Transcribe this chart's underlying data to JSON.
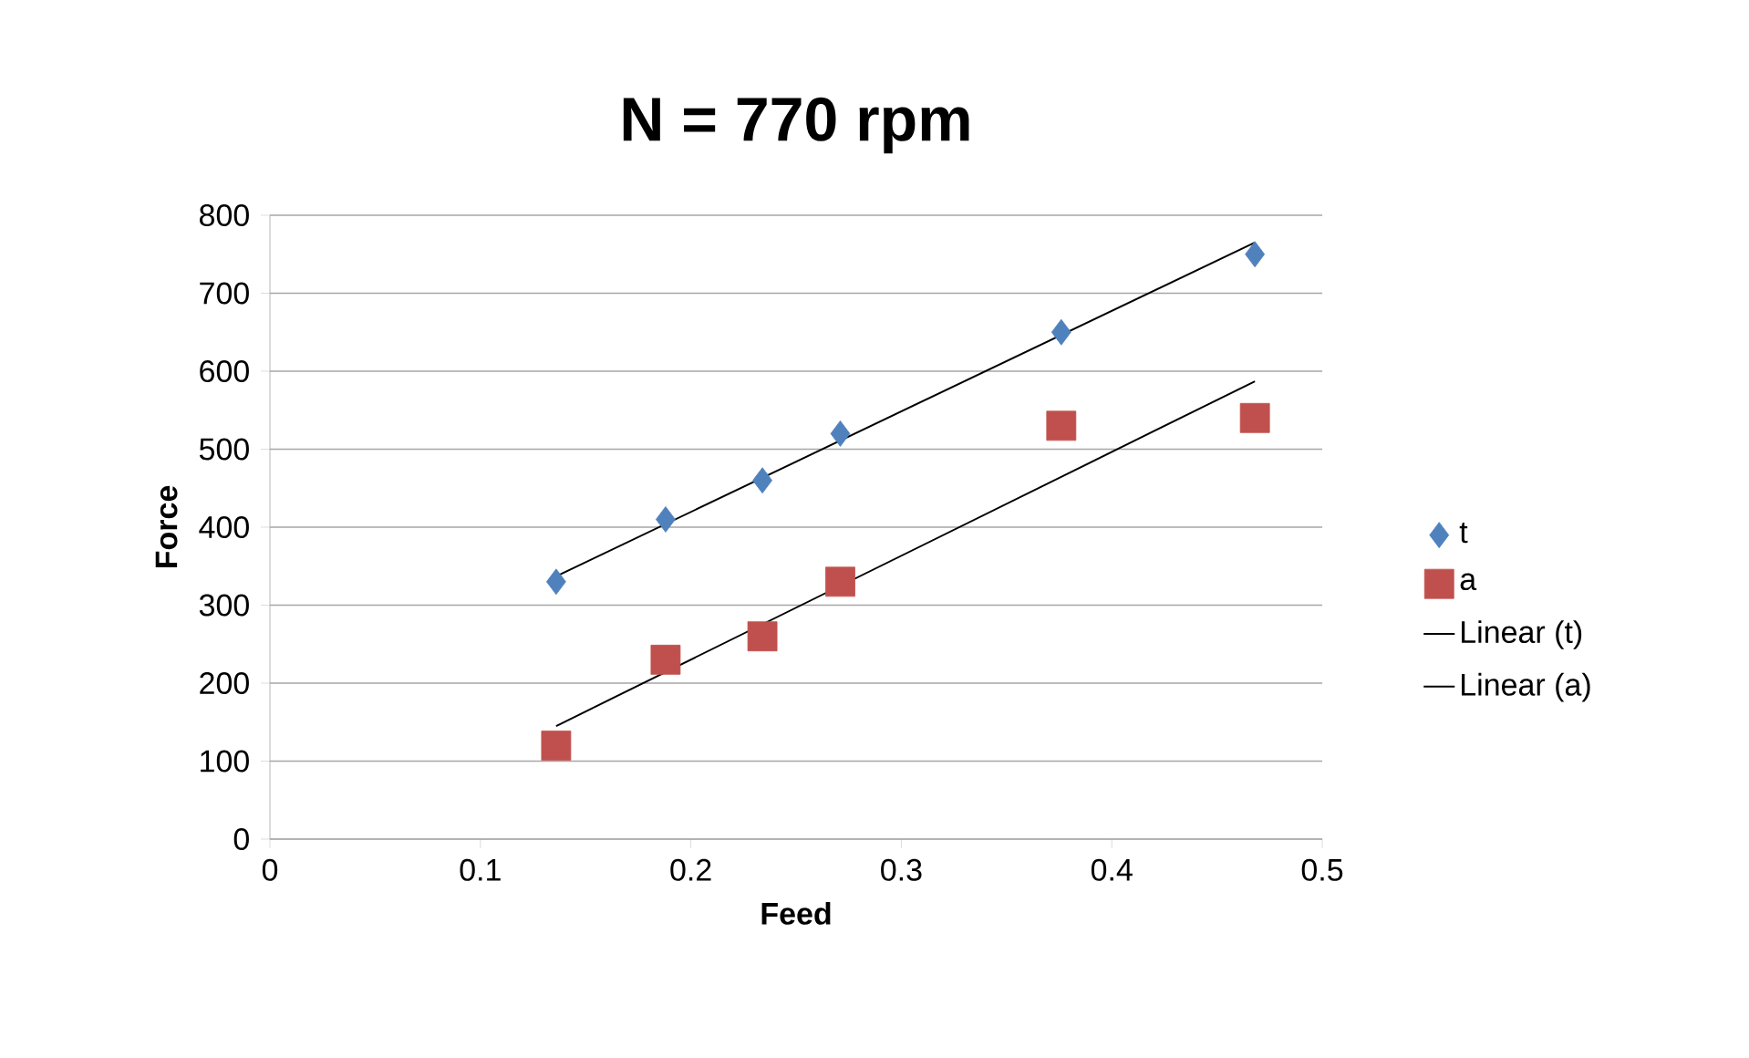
{
  "chart_data": {
    "type": "scatter",
    "title": "N = 770 rpm",
    "xlabel": "Feed",
    "ylabel": "Force",
    "xlim": [
      0,
      0.5
    ],
    "xticks": [
      0,
      0.1,
      0.2,
      0.3,
      0.4,
      0.5
    ],
    "ylim": [
      0,
      800
    ],
    "yticks": [
      0,
      100,
      200,
      300,
      400,
      500,
      600,
      700,
      800
    ],
    "grid": "y",
    "legend": "right",
    "series": [
      {
        "name": "t",
        "marker": "diamond",
        "color": "#4f81bd",
        "x": [
          0.136,
          0.188,
          0.234,
          0.271,
          0.376,
          0.468
        ],
        "values": [
          330,
          410,
          460,
          520,
          650,
          750
        ]
      },
      {
        "name": "a",
        "marker": "square",
        "color": "#c0504d",
        "x": [
          0.136,
          0.188,
          0.234,
          0.271,
          0.376,
          0.468
        ],
        "values": [
          120,
          230,
          260,
          330,
          530,
          540
        ]
      },
      {
        "name": "Linear (t)",
        "type": "line",
        "marker": "none",
        "line_style": "solid",
        "color": "#000000",
        "x": [
          0.136,
          0.468
        ],
        "values": [
          337,
          765
        ]
      },
      {
        "name": "Linear (a)",
        "type": "line",
        "marker": "none",
        "line_style": "solid",
        "color": "#000000",
        "x": [
          0.136,
          0.468
        ],
        "values": [
          145,
          587
        ]
      }
    ]
  }
}
